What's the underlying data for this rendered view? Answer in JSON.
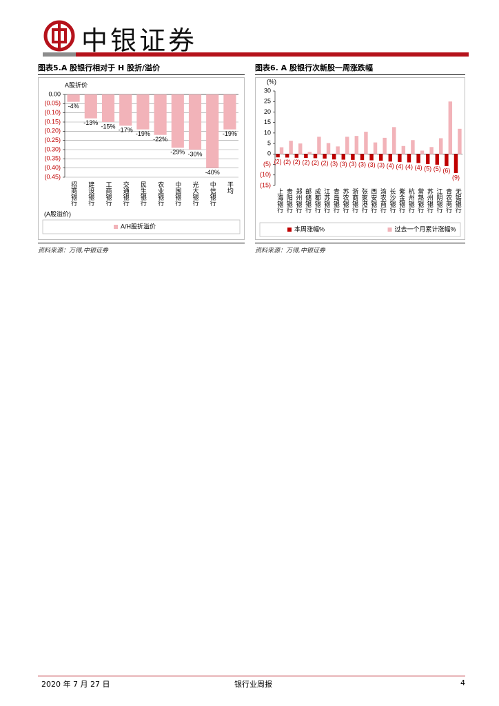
{
  "header": {
    "brand": "中银证券"
  },
  "chart_data": [
    {
      "type": "bar",
      "title": "图表5.A 股银行相对于 H 股折/溢价",
      "ylabel": "A股折价",
      "ylabel_bottom": "(A股溢价)",
      "categories": [
        "招商银行",
        "建设银行",
        "工商银行",
        "交通银行",
        "民生银行",
        "农业银行",
        "中国银行",
        "光大银行",
        "中信银行",
        "平均"
      ],
      "series": [
        {
          "name": "A/H股折溢价",
          "color": "#f2b3b9",
          "values": [
            -0.04,
            -0.13,
            -0.15,
            -0.17,
            -0.19,
            -0.22,
            -0.29,
            -0.3,
            -0.4,
            -0.19
          ],
          "value_labels": [
            "-4%",
            "-13%",
            "-15%",
            "-17%",
            "-19%",
            "-22%",
            "-29%",
            "-30%",
            "-40%",
            "-19%"
          ]
        }
      ],
      "ylim": [
        -0.45,
        0
      ],
      "yticks": [
        {
          "value": 0,
          "label": "0.00"
        },
        {
          "value": -0.05,
          "label": "(0.05)"
        },
        {
          "value": -0.1,
          "label": "(0.10)"
        },
        {
          "value": -0.15,
          "label": "(0.15)"
        },
        {
          "value": -0.2,
          "label": "(0.20)"
        },
        {
          "value": -0.25,
          "label": "(0.25)"
        },
        {
          "value": -0.3,
          "label": "(0.30)"
        },
        {
          "value": -0.35,
          "label": "(0.35)"
        },
        {
          "value": -0.4,
          "label": "(0.40)"
        },
        {
          "value": -0.45,
          "label": "(0.45)"
        }
      ],
      "grid": true,
      "source": "资料来源：万得,中银证券"
    },
    {
      "type": "bar",
      "title": "图表6. A 股银行次新股一周涨跌幅",
      "ylabel": "(%)",
      "categories": [
        "上海银行",
        "贵阳银行",
        "郑州银行",
        "邮储银行",
        "成都银行",
        "江苏银行",
        "青岛银行",
        "苏农银行",
        "浙商银行",
        "张家港行",
        "西安银行",
        "渝农商行",
        "长沙银行",
        "紫金银行",
        "杭州银行",
        "常熟银行",
        "苏州银行",
        "江阴银行",
        "青农商行",
        "无锡银行"
      ],
      "series": [
        {
          "name": "本周涨幅%",
          "color": "#c00000",
          "values": [
            -1.6,
            -1.7,
            -1.8,
            -1.9,
            -2.0,
            -2.2,
            -2.6,
            -2.7,
            -2.8,
            -2.9,
            -3.0,
            -3.2,
            -3.6,
            -3.8,
            -4.0,
            -4.3,
            -4.8,
            -5.1,
            -5.8,
            -9.1
          ],
          "value_labels": [
            "(2)",
            "(2)",
            "(2)",
            "(2)",
            "(2)",
            "(2)",
            "(3)",
            "(3)",
            "(3)",
            "(3)",
            "(3)",
            "(3)",
            "(4)",
            "(4)",
            "(4)",
            "(4)",
            "(5)",
            "(5)",
            "(6)",
            "(9)"
          ]
        },
        {
          "name": "过去一个月累计涨幅%",
          "color": "#f2b3b9",
          "values": [
            3.2,
            6.3,
            5.0,
            1.0,
            8.2,
            5.2,
            3.6,
            8.2,
            8.6,
            10.6,
            5.5,
            7.7,
            12.8,
            3.8,
            6.6,
            1.6,
            3.3,
            7.5,
            25.0,
            12.0
          ]
        }
      ],
      "ylim": [
        -15,
        30
      ],
      "yticks": [
        30,
        25,
        20,
        15,
        10,
        5,
        0,
        {
          "value": -5,
          "label": "(5)"
        },
        {
          "value": -10,
          "label": "(10)"
        },
        {
          "value": -15,
          "label": "(15)"
        }
      ],
      "grid": false,
      "source": "资料来源：万得,中银证券"
    }
  ],
  "footer": {
    "date": "2020 年 7 月 27 日",
    "report": "银行业周报",
    "page": "4"
  }
}
